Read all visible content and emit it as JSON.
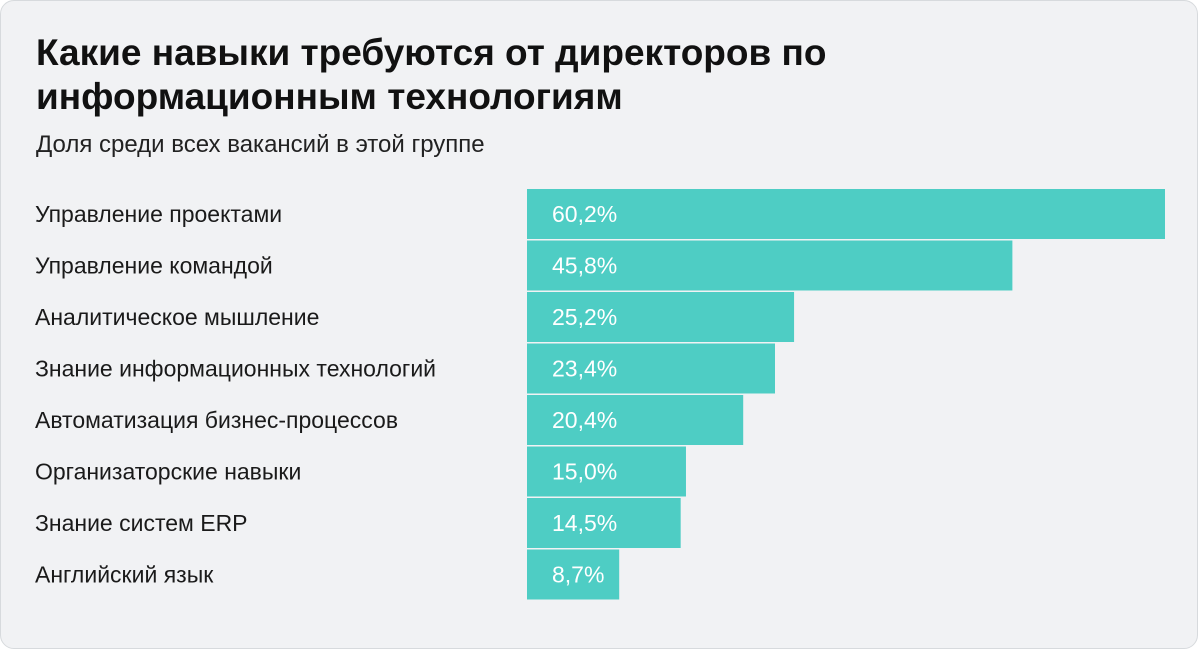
{
  "header": {
    "title": "Какие навыки требуются от директоров по информационным технологиям",
    "subtitle": "Доля среди всех вакансий в этой группе"
  },
  "colors": {
    "bar": "#4ecdc4",
    "background": "#f1f2f4",
    "text": "#1a1a1a"
  },
  "chart_data": {
    "type": "bar",
    "orientation": "horizontal",
    "title": "Какие навыки требуются от директоров по информационным технологиям",
    "subtitle": "Доля среди всех вакансий в этой группе",
    "categories": [
      "Управление проектами",
      "Управление командой",
      "Аналитическое мышление",
      "Знание информационных технологий",
      "Автоматизация бизнес-процессов",
      "Организаторские навыки",
      "Знание систем ERP",
      "Английский язык"
    ],
    "values": [
      60.2,
      45.8,
      25.2,
      23.4,
      20.4,
      15.0,
      14.5,
      8.7
    ],
    "value_labels": [
      "60,2%",
      "45,8%",
      "25,2%",
      "23,4%",
      "20,4%",
      "15,0%",
      "14,5%",
      "8,7%"
    ],
    "xlim": [
      0,
      60.2
    ],
    "grid": false,
    "legend": "none"
  }
}
